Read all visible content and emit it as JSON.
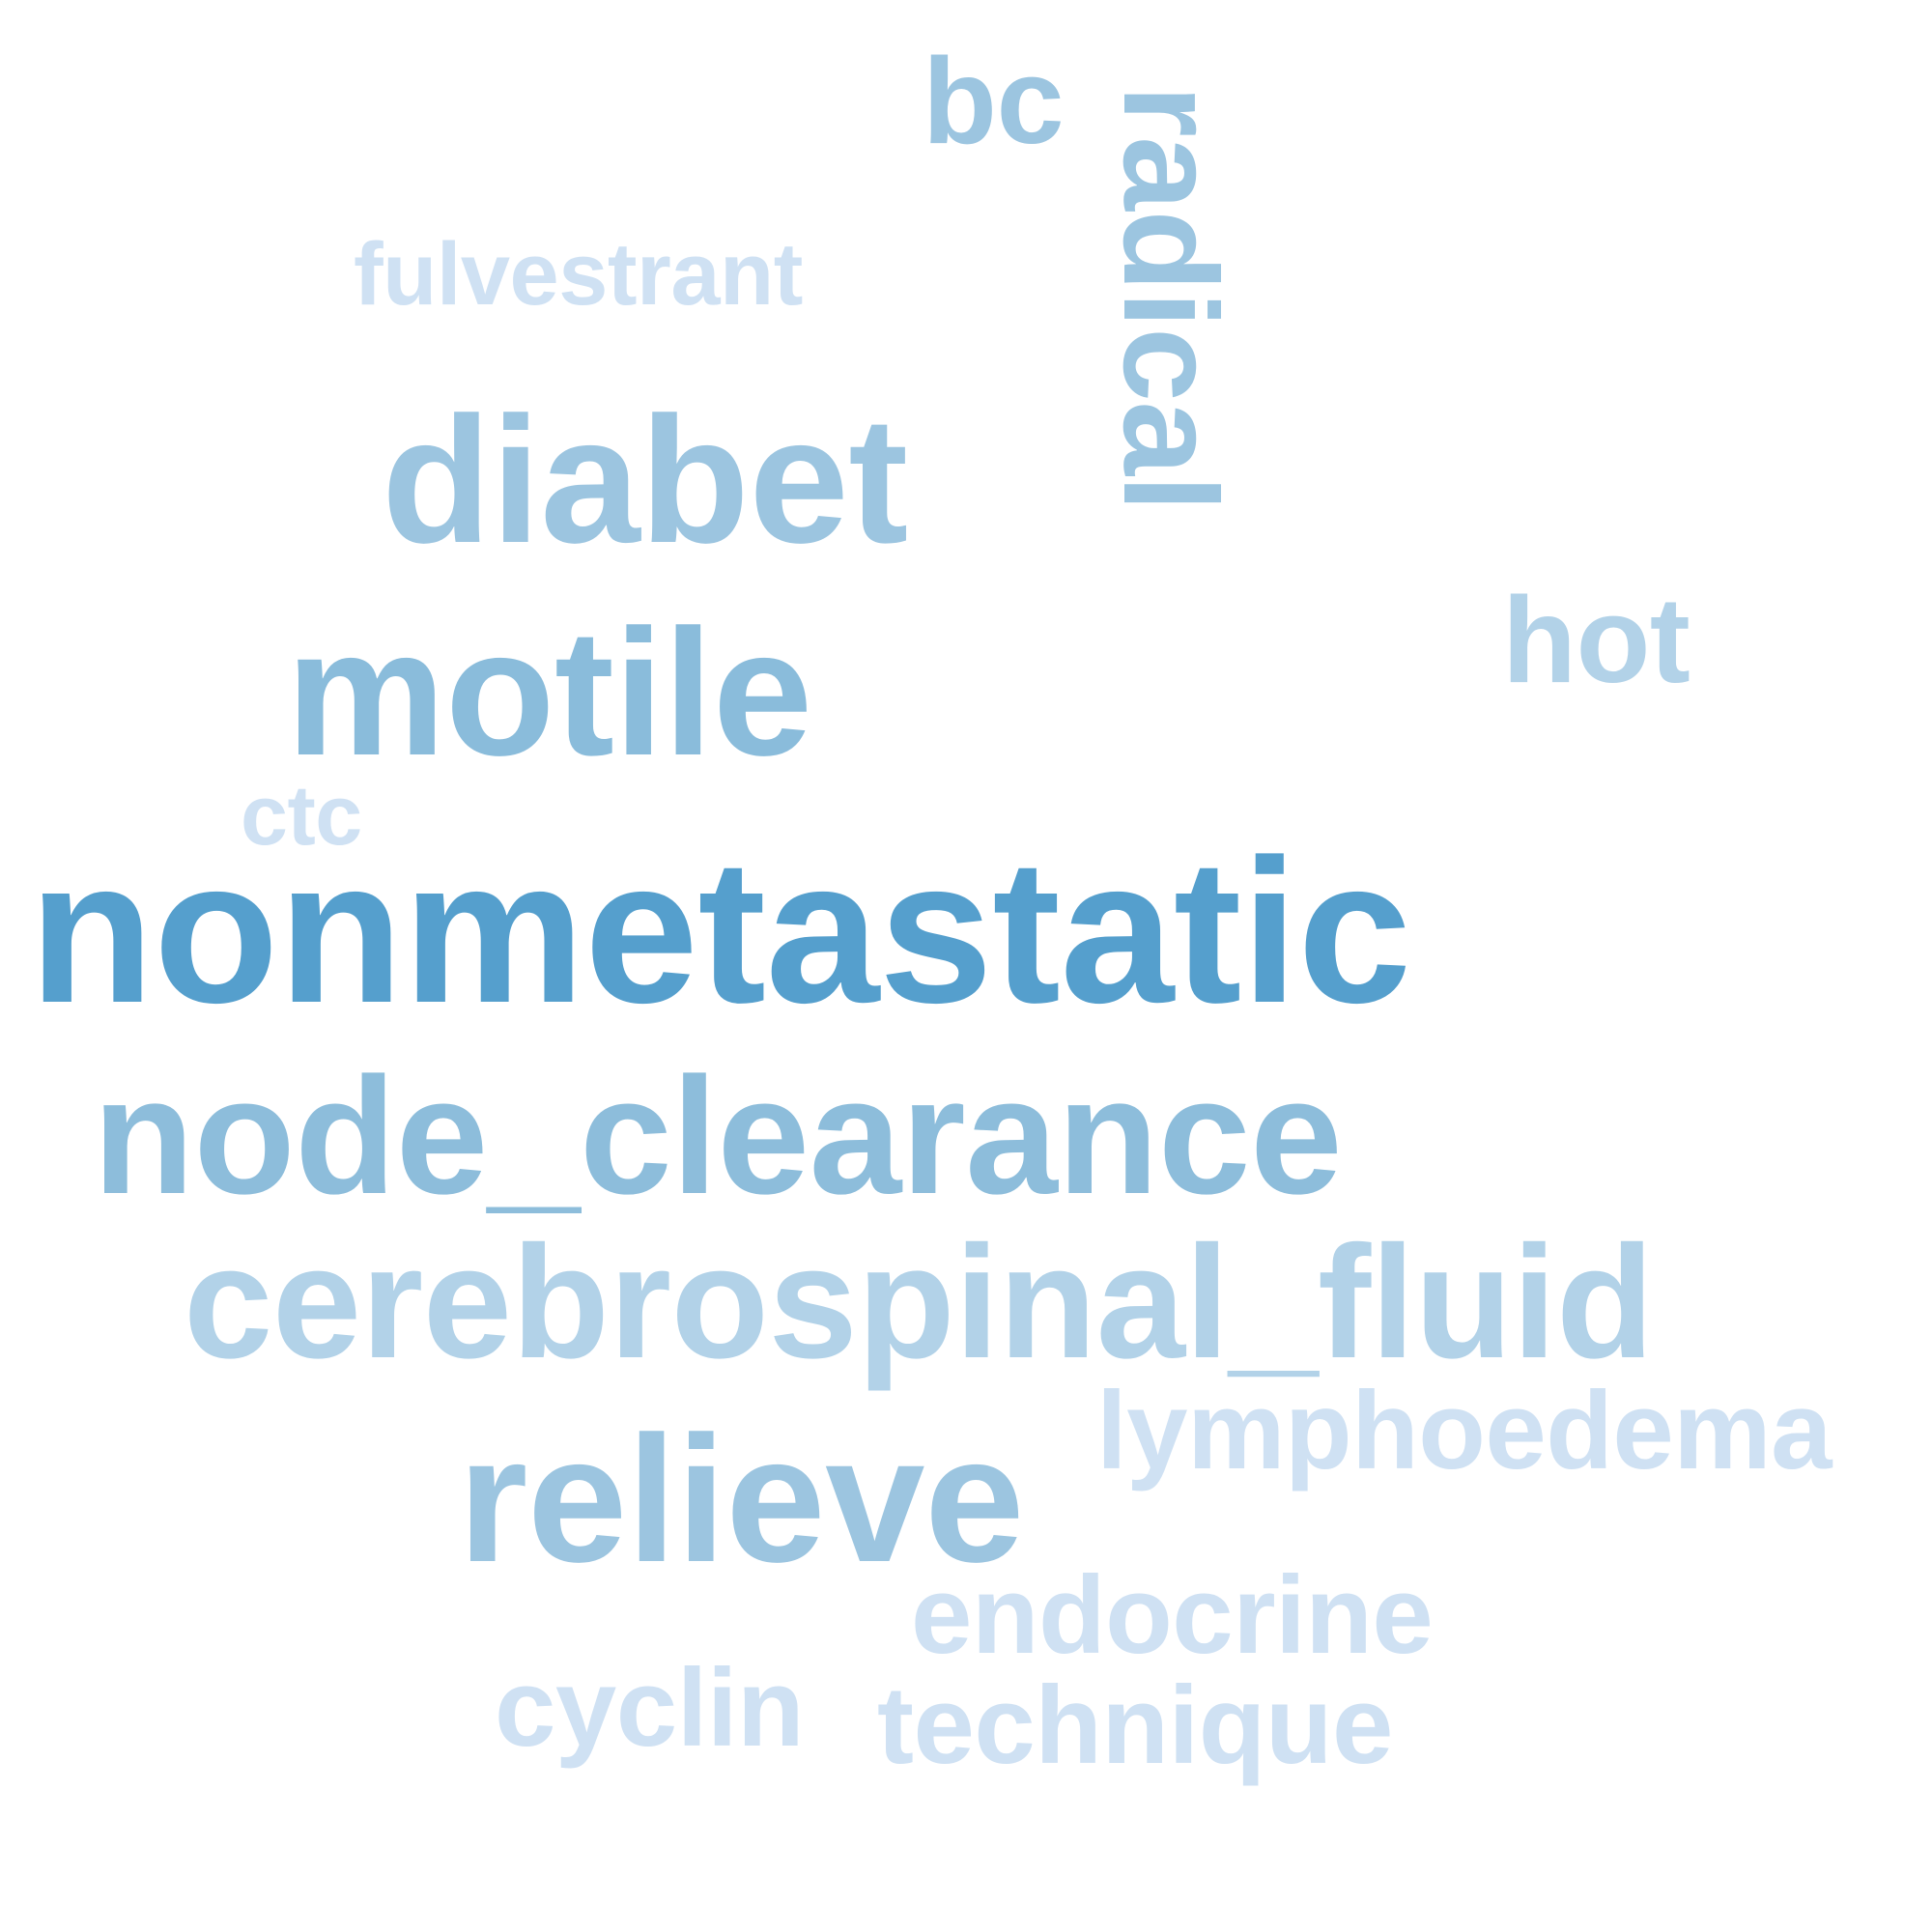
{
  "words": [
    {
      "text": "bc",
      "color": "#9cc5e0"
    },
    {
      "text": "radical",
      "color": "#9cc5e0"
    },
    {
      "text": "fulvestrant",
      "color": "#cfe1f3"
    },
    {
      "text": "diabet",
      "color": "#9cc5e0"
    },
    {
      "text": "motile",
      "color": "#8abcdb"
    },
    {
      "text": "hot",
      "color": "#b2d2e8"
    },
    {
      "text": "ctc",
      "color": "#cfe1f3"
    },
    {
      "text": "nonmetastatic",
      "color": "#559fcd"
    },
    {
      "text": "node_clearance",
      "color": "#8dbddb"
    },
    {
      "text": "cerebrospinal_fluid",
      "color": "#b2d2e8"
    },
    {
      "text": "lymphoedema",
      "color": "#cfe1f3"
    },
    {
      "text": "relieve",
      "color": "#9cc5e0"
    },
    {
      "text": "endocrine",
      "color": "#cfe1f3"
    },
    {
      "text": "cyclin",
      "color": "#cfe1f3"
    },
    {
      "text": "technique",
      "color": "#cfe1f3"
    }
  ]
}
